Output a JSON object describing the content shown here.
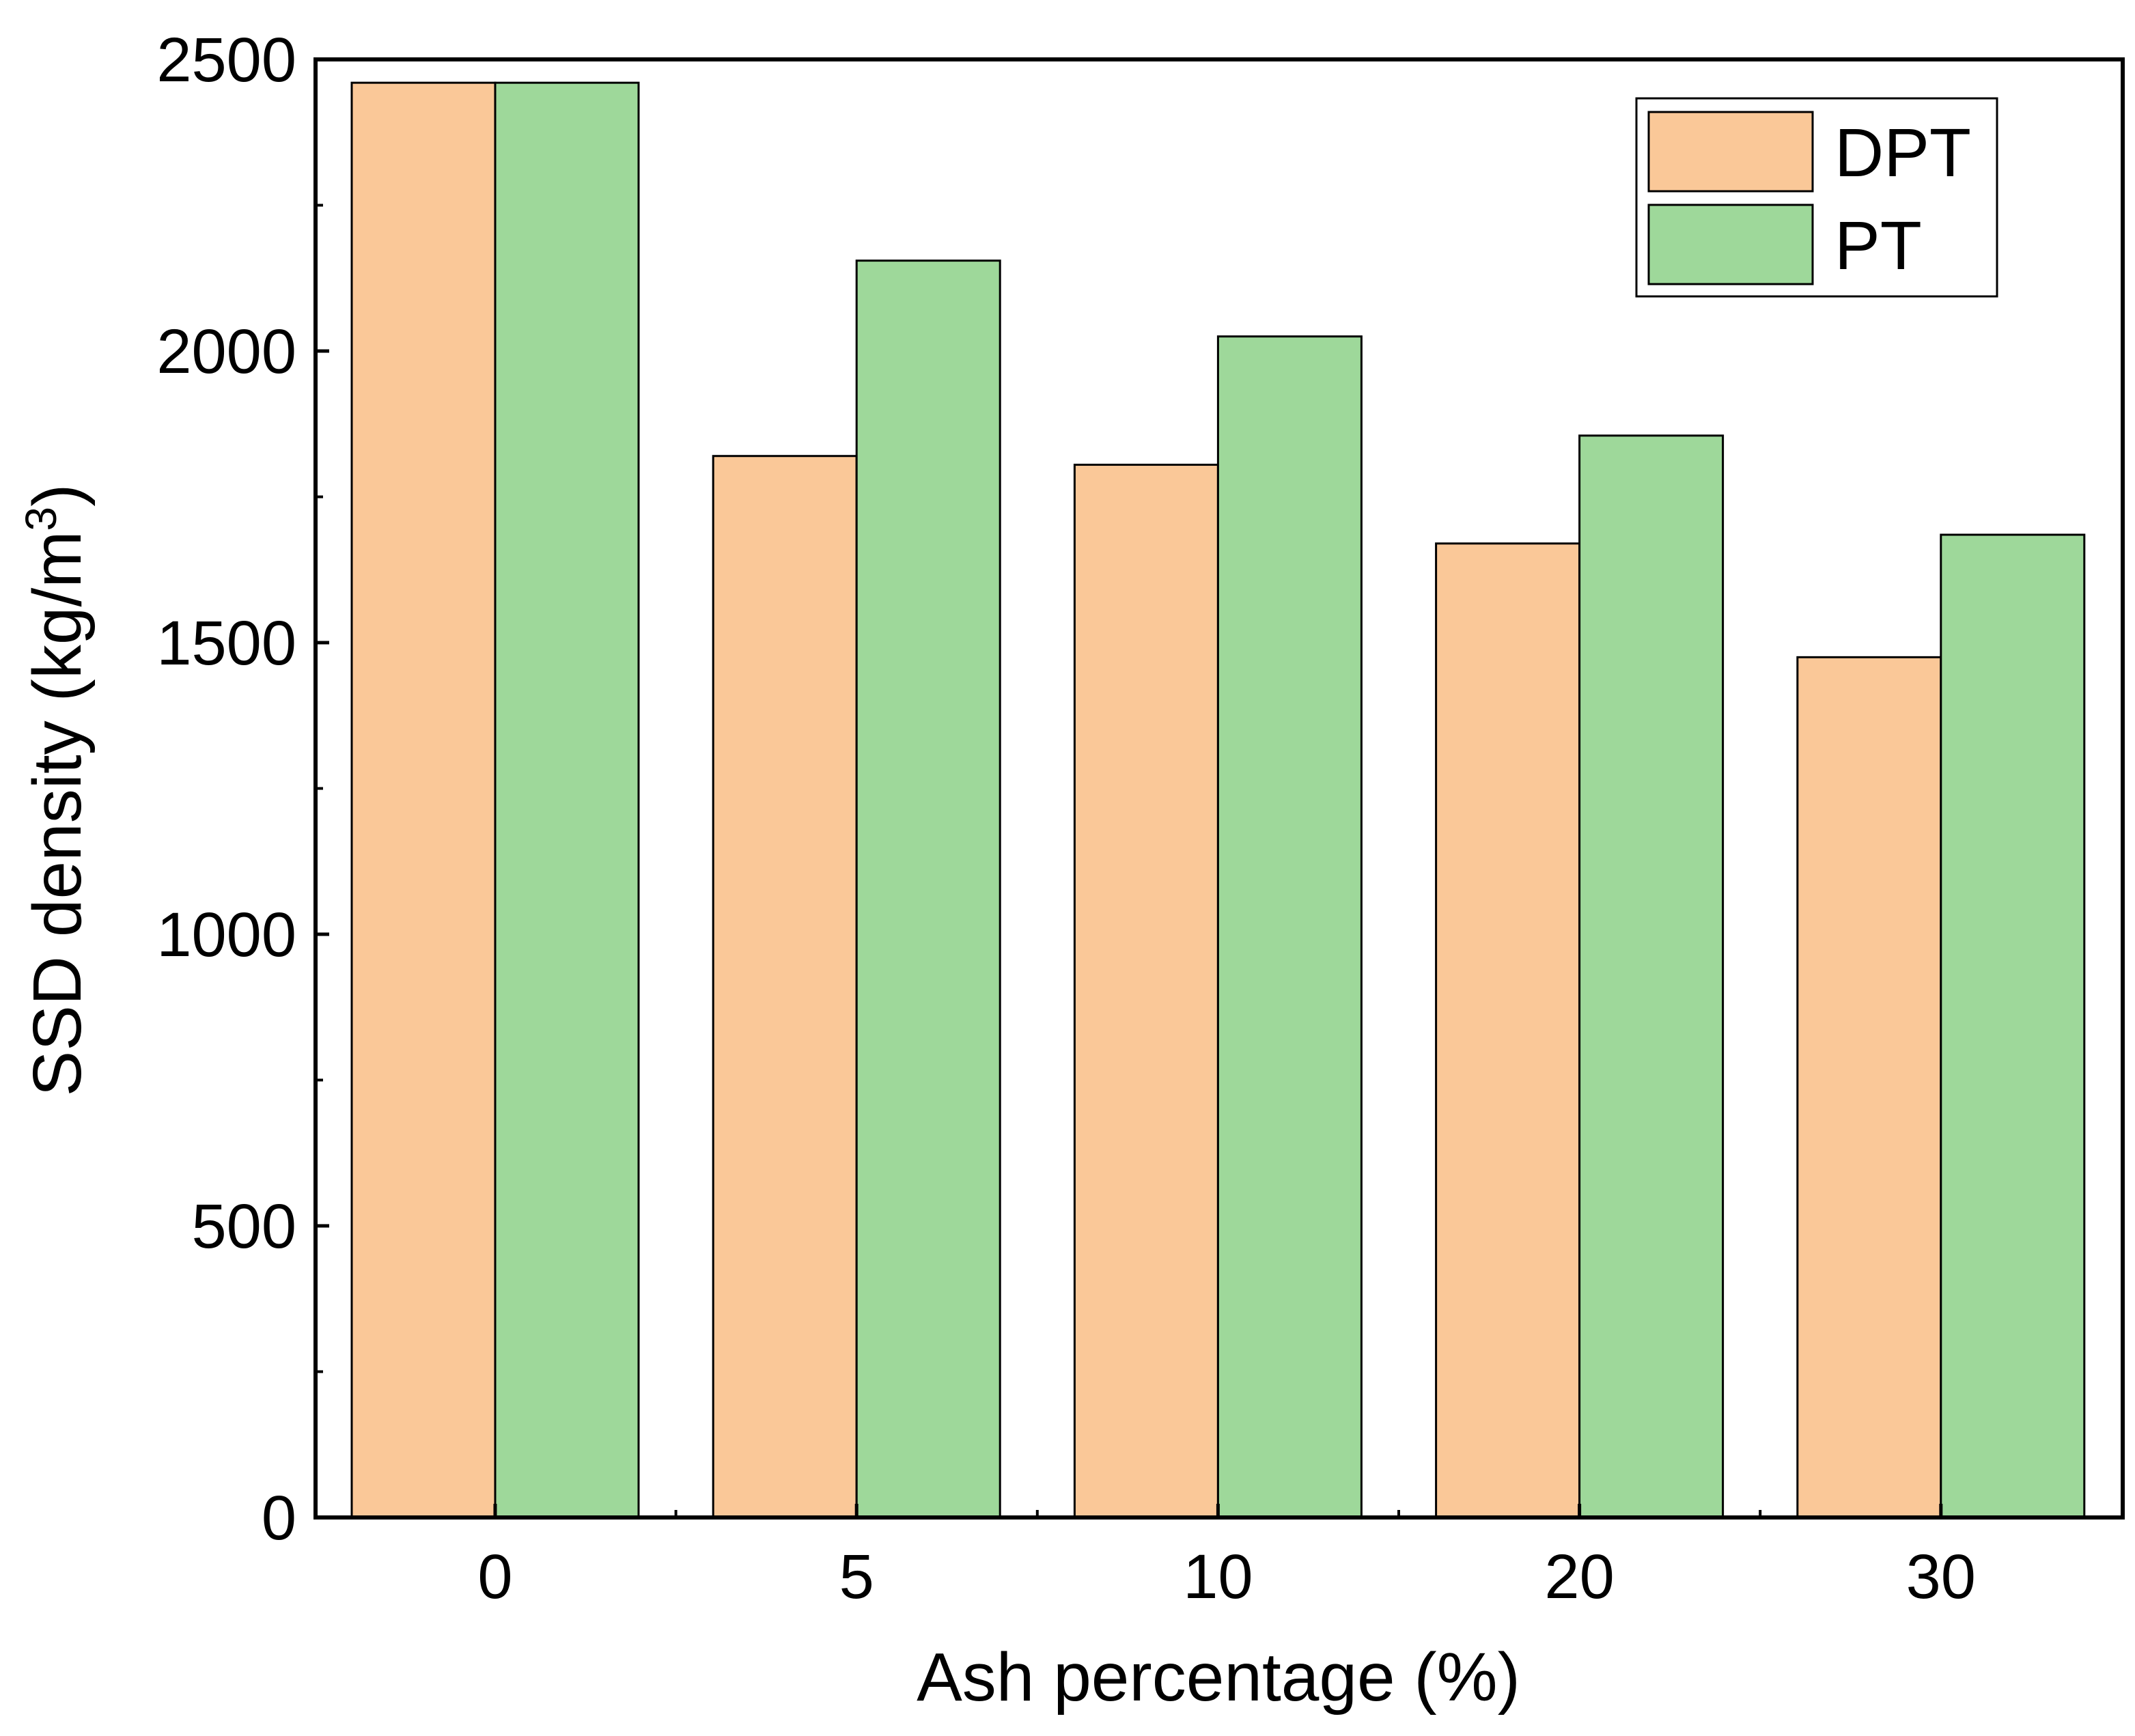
{
  "chart_data": {
    "type": "bar",
    "title": "",
    "xlabel": "Ash percentage (%)",
    "ylabel": "SSD density (kg/m3)",
    "ylabel_parts": {
      "main": "SSD density (kg/m",
      "superscript": "3",
      "end": ")"
    },
    "categories": [
      "0",
      "5",
      "10",
      "20",
      "30"
    ],
    "series": [
      {
        "name": "DPT",
        "color": "#FAC898",
        "values": [
          2460,
          1820,
          1805,
          1670,
          1475
        ]
      },
      {
        "name": "PT",
        "color": "#9ED89A",
        "values": [
          2460,
          2155,
          2025,
          1855,
          1685
        ]
      }
    ],
    "ylim": [
      0,
      2500
    ],
    "yticks": [
      "0",
      "500",
      "1000",
      "1500",
      "2000",
      "2500"
    ],
    "grid": false,
    "legend_position": "top-right"
  }
}
